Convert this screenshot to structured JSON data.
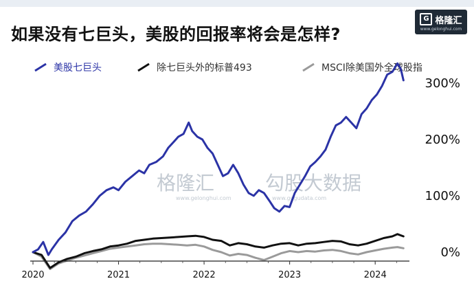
{
  "header": {
    "title": "如果没有七巨头，美股的回报率将会是怎样?",
    "logo_text": "格隆汇",
    "logo_sub": "www.gelonghui.com"
  },
  "watermarks": {
    "left": "格隆汇",
    "left_sub": "www.gelonghui.com",
    "right": "勾股大数据",
    "right_sub": "www.gogudata.com"
  },
  "chart_data": {
    "type": "line",
    "title": "如果没有七巨头，美股的回报率将会是怎样?",
    "xlabel": "",
    "ylabel": "",
    "x_ticks": [
      "2020",
      "2021",
      "2022",
      "2023",
      "2024"
    ],
    "xlim": [
      2020.0,
      2024.4
    ],
    "y_ticks": [
      "0%",
      "100%",
      "200%",
      "300%"
    ],
    "ylim": [
      -0.15,
      3.5
    ],
    "legend_position": "top",
    "grid": false,
    "series": [
      {
        "name": "美股七巨头",
        "color": "#2b33a6",
        "x": [
          2020.0,
          2020.06,
          2020.12,
          2020.18,
          2020.22,
          2020.3,
          2020.38,
          2020.46,
          2020.54,
          2020.62,
          2020.7,
          2020.78,
          2020.86,
          2020.94,
          2021.0,
          2021.08,
          2021.16,
          2021.24,
          2021.3,
          2021.36,
          2021.44,
          2021.52,
          2021.58,
          2021.64,
          2021.7,
          2021.76,
          2021.82,
          2021.86,
          2021.92,
          2021.98,
          2022.04,
          2022.1,
          2022.16,
          2022.22,
          2022.28,
          2022.34,
          2022.4,
          2022.46,
          2022.52,
          2022.58,
          2022.64,
          2022.7,
          2022.76,
          2022.82,
          2022.88,
          2022.94,
          2023.0,
          2023.06,
          2023.12,
          2023.18,
          2023.24,
          2023.3,
          2023.36,
          2023.42,
          2023.48,
          2023.54,
          2023.6,
          2023.66,
          2023.72,
          2023.78,
          2023.84,
          2023.9,
          2023.96,
          2024.02,
          2024.08,
          2024.14,
          2024.2,
          2024.26,
          2024.3,
          2024.33
        ],
        "values": [
          0.0,
          0.05,
          0.18,
          -0.05,
          0.05,
          0.22,
          0.35,
          0.55,
          0.65,
          0.72,
          0.85,
          1.0,
          1.1,
          1.15,
          1.1,
          1.25,
          1.35,
          1.45,
          1.4,
          1.55,
          1.6,
          1.7,
          1.85,
          1.95,
          2.05,
          2.1,
          2.3,
          2.15,
          2.05,
          2.0,
          1.85,
          1.75,
          1.55,
          1.35,
          1.4,
          1.55,
          1.4,
          1.2,
          1.05,
          1.0,
          1.1,
          1.05,
          0.92,
          0.78,
          0.72,
          0.82,
          0.8,
          1.05,
          1.2,
          1.35,
          1.52,
          1.6,
          1.7,
          1.82,
          2.05,
          2.25,
          2.3,
          2.4,
          2.3,
          2.2,
          2.45,
          2.55,
          2.7,
          2.8,
          2.95,
          3.15,
          3.2,
          3.35,
          3.25,
          3.05
        ]
      },
      {
        "name": "除七巨头外的标普493",
        "color": "#111111",
        "x": [
          2020.0,
          2020.1,
          2020.2,
          2020.3,
          2020.4,
          2020.5,
          2020.6,
          2020.7,
          2020.8,
          2020.9,
          2021.0,
          2021.1,
          2021.2,
          2021.3,
          2021.4,
          2021.5,
          2021.6,
          2021.7,
          2021.8,
          2021.9,
          2022.0,
          2022.1,
          2022.2,
          2022.3,
          2022.4,
          2022.5,
          2022.6,
          2022.7,
          2022.8,
          2022.9,
          2023.0,
          2023.1,
          2023.2,
          2023.3,
          2023.4,
          2023.5,
          2023.6,
          2023.7,
          2023.8,
          2023.9,
          2024.0,
          2024.1,
          2024.2,
          2024.26,
          2024.33
        ],
        "values": [
          0.0,
          -0.05,
          -0.28,
          -0.18,
          -0.12,
          -0.08,
          -0.02,
          0.02,
          0.05,
          0.1,
          0.12,
          0.15,
          0.2,
          0.22,
          0.24,
          0.25,
          0.26,
          0.27,
          0.28,
          0.29,
          0.27,
          0.22,
          0.2,
          0.12,
          0.16,
          0.14,
          0.1,
          0.08,
          0.12,
          0.15,
          0.16,
          0.12,
          0.15,
          0.16,
          0.18,
          0.2,
          0.19,
          0.14,
          0.12,
          0.15,
          0.2,
          0.25,
          0.28,
          0.32,
          0.28
        ]
      },
      {
        "name": "MSCI除美国外全球股指",
        "color": "#9a9a9a",
        "x": [
          2020.0,
          2020.1,
          2020.2,
          2020.3,
          2020.4,
          2020.5,
          2020.6,
          2020.7,
          2020.8,
          2020.9,
          2021.0,
          2021.1,
          2021.2,
          2021.3,
          2021.4,
          2021.5,
          2021.6,
          2021.7,
          2021.8,
          2021.9,
          2022.0,
          2022.1,
          2022.2,
          2022.3,
          2022.4,
          2022.5,
          2022.6,
          2022.7,
          2022.8,
          2022.9,
          2023.0,
          2023.1,
          2023.2,
          2023.3,
          2023.4,
          2023.5,
          2023.6,
          2023.7,
          2023.8,
          2023.9,
          2024.0,
          2024.1,
          2024.2,
          2024.26,
          2024.33
        ],
        "values": [
          0.0,
          -0.08,
          -0.3,
          -0.2,
          -0.15,
          -0.1,
          -0.06,
          -0.02,
          0.02,
          0.06,
          0.08,
          0.1,
          0.12,
          0.14,
          0.15,
          0.15,
          0.14,
          0.13,
          0.12,
          0.13,
          0.1,
          0.04,
          0.0,
          -0.06,
          -0.03,
          -0.05,
          -0.1,
          -0.14,
          -0.08,
          -0.02,
          0.02,
          0.0,
          0.02,
          0.01,
          0.03,
          0.04,
          0.02,
          -0.02,
          -0.04,
          0.0,
          0.03,
          0.06,
          0.08,
          0.09,
          0.07
        ]
      }
    ]
  }
}
